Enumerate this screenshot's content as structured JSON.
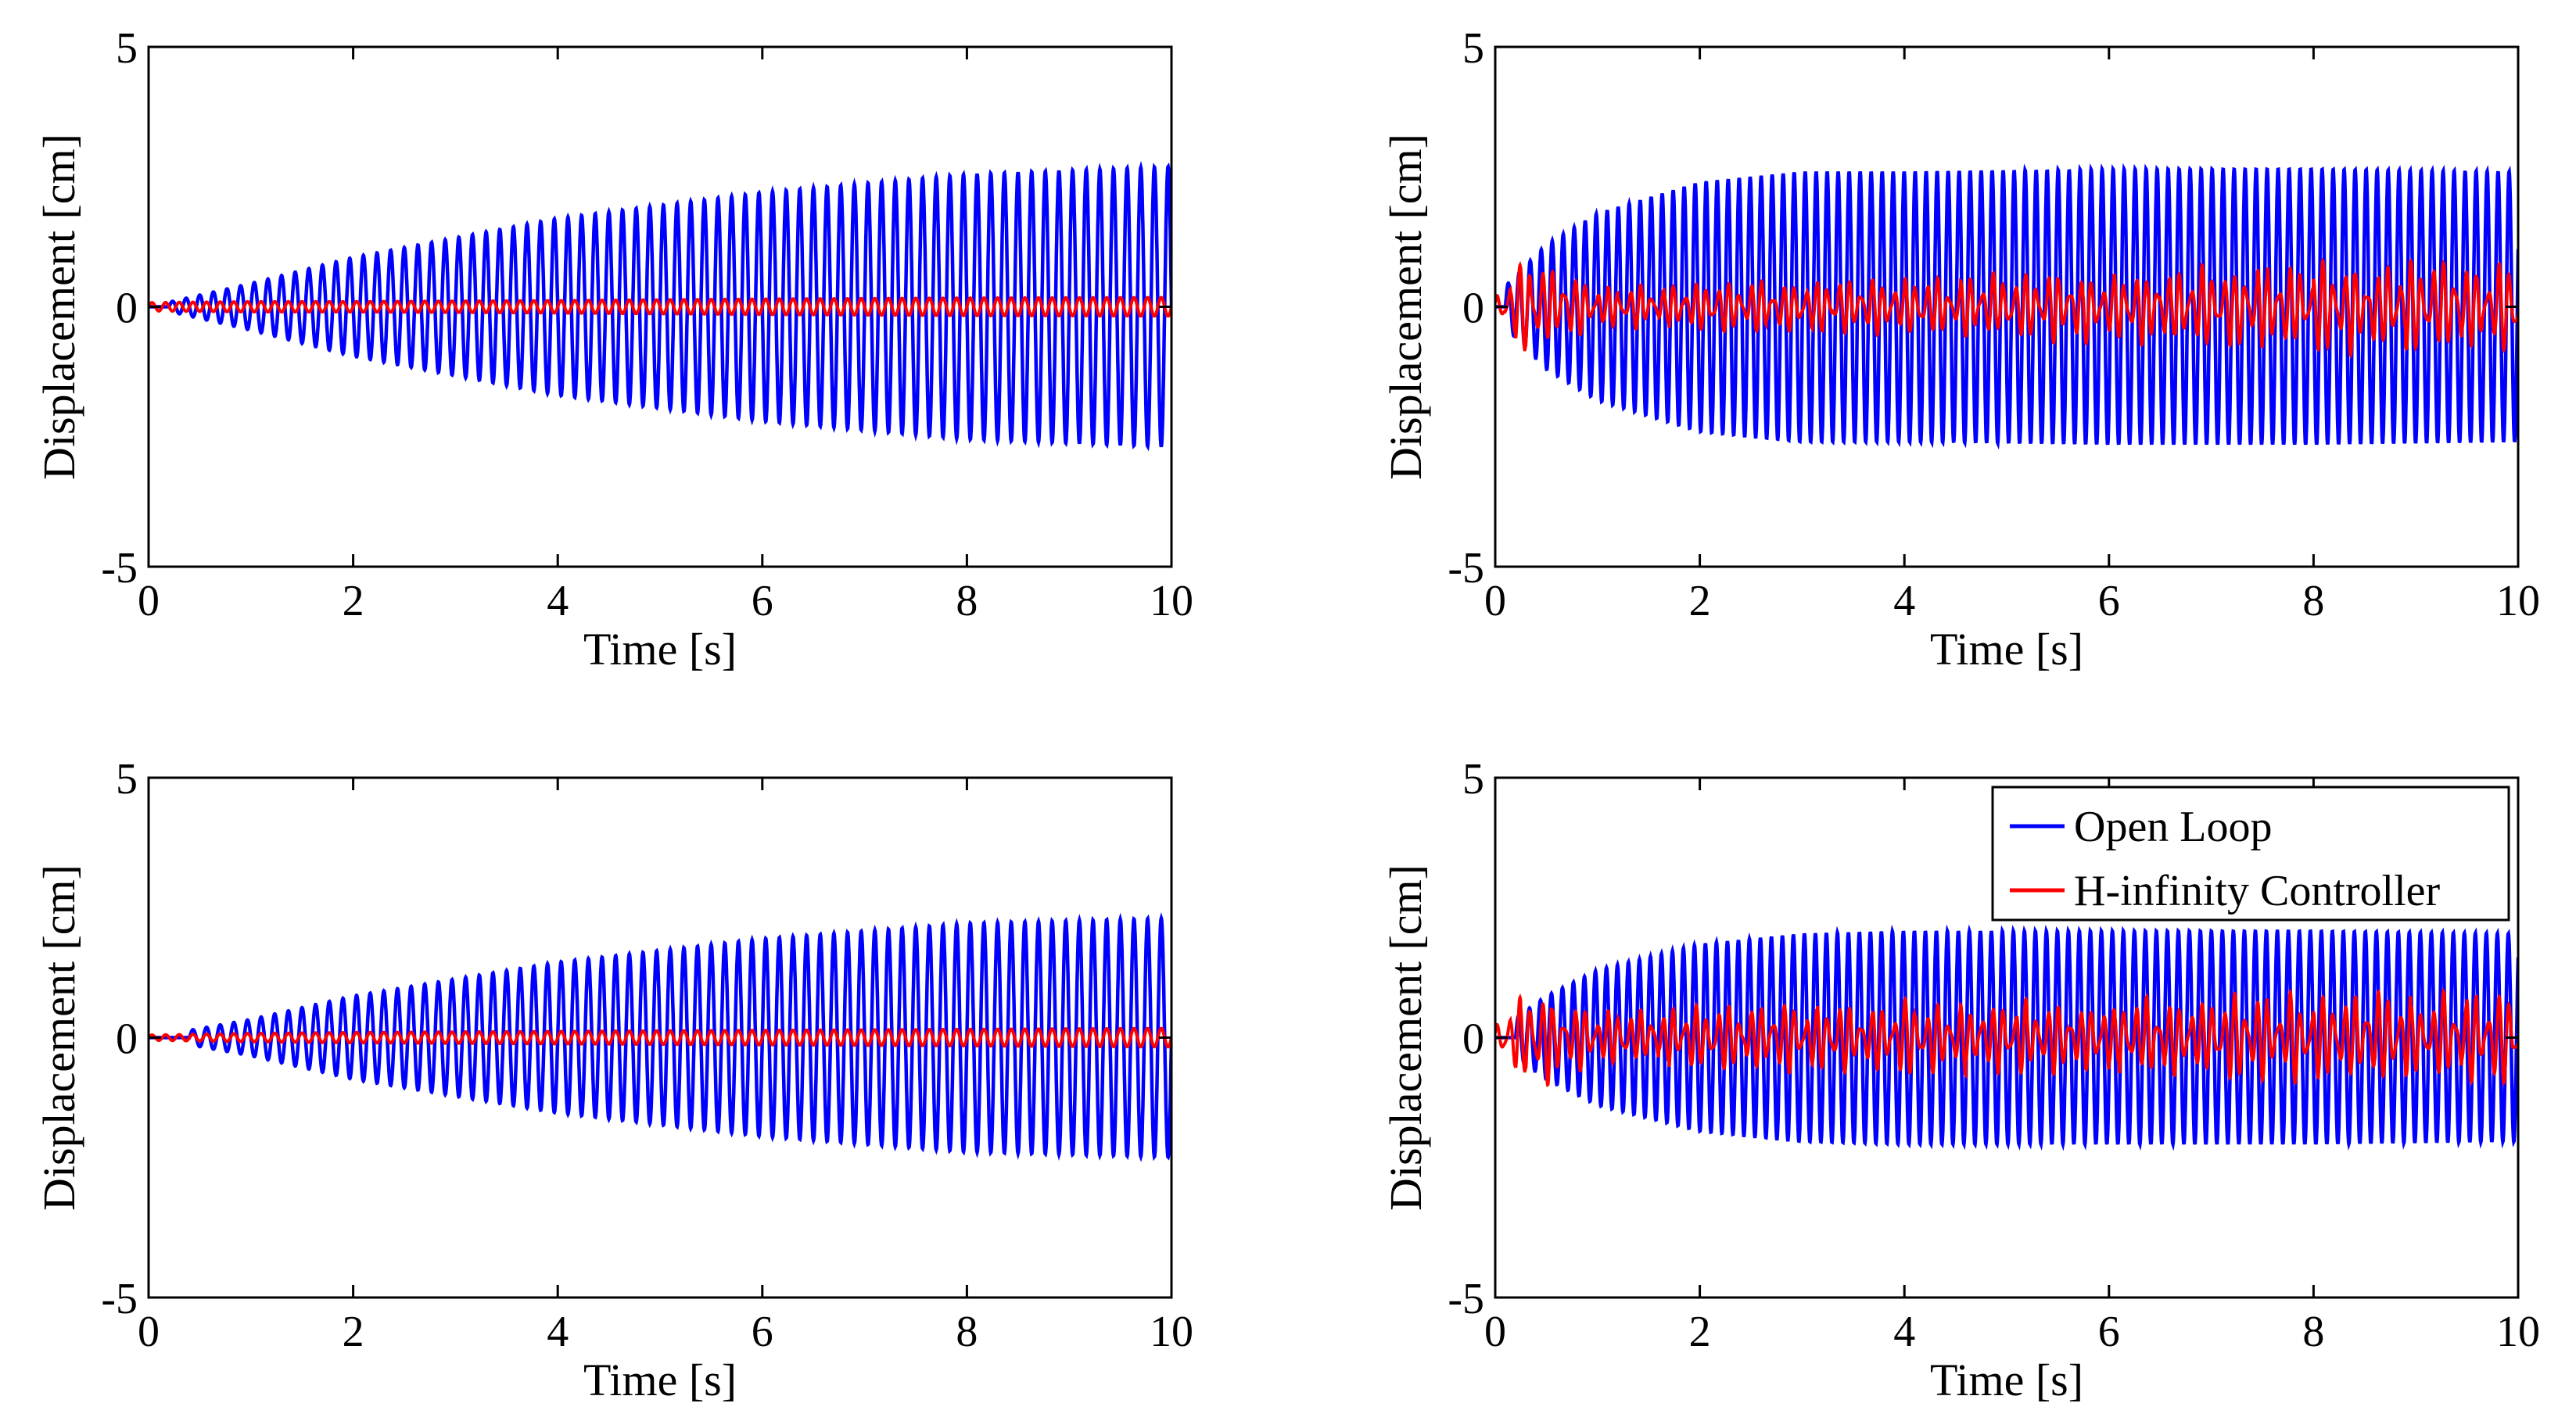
{
  "figure": {
    "layout": "2x2 grid of time-response plots",
    "colors": {
      "open_loop": "#0000ff",
      "controller": "#ff0000",
      "axes": "#000000",
      "background": "#ffffff"
    }
  },
  "chart_data": [
    {
      "type": "line",
      "panel": "top-left",
      "xlabel": "Time [s]",
      "ylabel": "Displacement [cm]",
      "xlim": [
        0,
        10
      ],
      "ylim": [
        -5,
        5
      ],
      "xticks": [
        "0",
        "2",
        "4",
        "6",
        "8",
        "10"
      ],
      "yticks": [
        "-5",
        "0",
        "5"
      ],
      "grid": false,
      "legend": null,
      "series": [
        {
          "name": "Open Loop",
          "color": "#0000ff",
          "kind": "growing_oscillation",
          "frequency_hz": 7.5,
          "onset_s": 0.2,
          "envelope": {
            "t": [
              0,
              1,
              2,
              4,
              6,
              8,
              10
            ],
            "amp": [
              0.0,
              0.45,
              0.95,
              1.7,
              2.2,
              2.55,
              2.7
            ]
          }
        },
        {
          "name": "H-infinity Controller",
          "color": "#ff0000",
          "kind": "growing_oscillation",
          "frequency_hz": 7.5,
          "onset_s": 0.0,
          "envelope": {
            "t": [
              0,
              1,
              2,
              4,
              6,
              8,
              10
            ],
            "amp": [
              0.08,
              0.1,
              0.1,
              0.12,
              0.15,
              0.17,
              0.18
            ]
          }
        }
      ]
    },
    {
      "type": "line",
      "panel": "top-right",
      "xlabel": "Time [s]",
      "ylabel": "Displacement [cm]",
      "xlim": [
        0,
        10
      ],
      "ylim": [
        -5,
        5
      ],
      "xticks": [
        "0",
        "2",
        "4",
        "6",
        "8",
        "10"
      ],
      "yticks": [
        "-5",
        "0",
        "5"
      ],
      "grid": false,
      "legend": null,
      "series": [
        {
          "name": "Open Loop",
          "color": "#0000ff",
          "kind": "saturating_oscillation",
          "frequency_hz": 9.3,
          "onset_s": 0.1,
          "envelope": {
            "t": [
              0,
              0.5,
              1,
              2,
              3,
              4,
              6,
              8,
              10
            ],
            "amp": [
              0.2,
              1.2,
              1.8,
              2.4,
              2.6,
              2.6,
              2.65,
              2.65,
              2.6
            ]
          }
        },
        {
          "name": "H-infinity Controller",
          "color": "#ff0000",
          "kind": "noisy_oscillation",
          "frequency_hz": 9.3,
          "onset_s": 0.0,
          "envelope": {
            "t": [
              0,
              0.3,
              1,
              2,
              4,
              6,
              8,
              10
            ],
            "amp": [
              0.3,
              0.9,
              0.35,
              0.4,
              0.5,
              0.6,
              0.75,
              0.8
            ]
          }
        }
      ]
    },
    {
      "type": "line",
      "panel": "bottom-left",
      "xlabel": "Time [s]",
      "ylabel": "Displacement [cm]",
      "xlim": [
        0,
        10
      ],
      "ylim": [
        -5,
        5
      ],
      "xticks": [
        "0",
        "2",
        "4",
        "6",
        "8",
        "10"
      ],
      "yticks": [
        "-5",
        "0",
        "5"
      ],
      "grid": false,
      "legend": null,
      "series": [
        {
          "name": "Open Loop",
          "color": "#0000ff",
          "kind": "growing_oscillation",
          "frequency_hz": 7.5,
          "onset_s": 0.4,
          "envelope": {
            "t": [
              0,
              1,
              2,
              4,
              6,
              8,
              10
            ],
            "amp": [
              0.0,
              0.35,
              0.8,
              1.45,
              1.9,
              2.2,
              2.3
            ]
          }
        },
        {
          "name": "H-infinity Controller",
          "color": "#ff0000",
          "kind": "growing_oscillation",
          "frequency_hz": 7.5,
          "onset_s": 0.0,
          "envelope": {
            "t": [
              0,
              1,
              2,
              4,
              6,
              8,
              10
            ],
            "amp": [
              0.05,
              0.08,
              0.1,
              0.12,
              0.14,
              0.16,
              0.18
            ]
          }
        }
      ]
    },
    {
      "type": "line",
      "panel": "bottom-right",
      "xlabel": "Time [s]",
      "ylabel": "Displacement [cm]",
      "xlim": [
        0,
        10
      ],
      "ylim": [
        -5,
        5
      ],
      "xticks": [
        "0",
        "2",
        "4",
        "6",
        "8",
        "10"
      ],
      "yticks": [
        "-5",
        "0",
        "5"
      ],
      "grid": false,
      "legend": {
        "placement": "top-right",
        "entries": [
          "Open Loop",
          "H-infinity Controller"
        ]
      },
      "series": [
        {
          "name": "Open Loop",
          "color": "#0000ff",
          "kind": "saturating_oscillation",
          "frequency_hz": 9.3,
          "onset_s": 0.2,
          "envelope": {
            "t": [
              0,
              0.5,
              1,
              2,
              3,
              4,
              6,
              8,
              10
            ],
            "amp": [
              0.1,
              0.8,
              1.3,
              1.8,
              2.0,
              2.05,
              2.05,
              2.05,
              2.0
            ]
          }
        },
        {
          "name": "H-infinity Controller",
          "color": "#ff0000",
          "kind": "noisy_oscillation",
          "frequency_hz": 9.3,
          "onset_s": 0.0,
          "envelope": {
            "t": [
              0,
              0.3,
              1,
              2,
              4,
              6,
              8,
              10
            ],
            "amp": [
              0.25,
              0.85,
              0.5,
              0.55,
              0.6,
              0.65,
              0.75,
              0.75
            ]
          }
        }
      ]
    }
  ]
}
